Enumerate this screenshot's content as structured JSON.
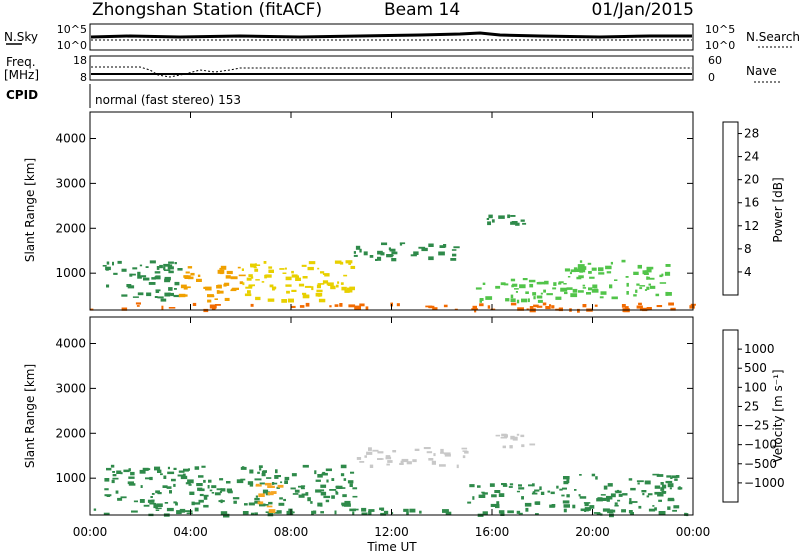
{
  "header": {
    "station": "Zhongshan Station (fitACF)",
    "beam": "Beam 14",
    "date": "01/Jan/2015"
  },
  "strips": {
    "nsky": {
      "label": "N.Sky",
      "ticks": [
        "10^5",
        "10^0"
      ],
      "right_label": "N.Search",
      "right_ticks": [
        "10^5",
        "10^0"
      ]
    },
    "freq": {
      "label_line1": "Freq.",
      "label_line2": "[MHz]",
      "ticks": [
        "18",
        "8"
      ],
      "right_label": "Nave",
      "right_ticks": [
        "60",
        "0"
      ]
    },
    "cpid": {
      "label": "CPID",
      "text": "normal (fast stereo) 153"
    }
  },
  "colors": {
    "power_scale": [
      "#1f3cff",
      "#2354a6",
      "#2f8a4a",
      "#52c44a",
      "#e8d000",
      "#f0a000",
      "#f26a00",
      "#e31a1a"
    ],
    "velocity_scale": [
      "#e31a1a",
      "#f26a00",
      "#f5a623",
      "#c8c8c8",
      "#c8c8c8",
      "#52c44a",
      "#2f8a4a",
      "#2354a6"
    ]
  },
  "chart_data": [
    {
      "type": "heatmap",
      "panel": "power",
      "ylabel": "Slant Range [km]",
      "xlabel": "",
      "yticks": [
        "1000",
        "2000",
        "3000",
        "4000"
      ],
      "ylim": [
        180,
        4590
      ],
      "xlim": [
        0,
        24
      ],
      "colorbar": {
        "label": "Power [dB]",
        "ticks": [
          "4",
          "8",
          "12",
          "16",
          "20",
          "24",
          "28"
        ],
        "range": [
          0,
          30
        ]
      },
      "regions": [
        {
          "x": [
            0.0,
            24.0
          ],
          "y": [
            200,
            350
          ],
          "level": 24
        },
        {
          "x": [
            0.5,
            3.5
          ],
          "y": [
            400,
            1300
          ],
          "level": 8
        },
        {
          "x": [
            3.5,
            6.0
          ],
          "y": [
            400,
            1200
          ],
          "level": 20
        },
        {
          "x": [
            6.0,
            10.5
          ],
          "y": [
            400,
            1300
          ],
          "level": 18
        },
        {
          "x": [
            10.5,
            14.5
          ],
          "y": [
            1300,
            1700
          ],
          "level": 8
        },
        {
          "x": [
            15.0,
            18.5
          ],
          "y": [
            400,
            900
          ],
          "level": 14
        },
        {
          "x": [
            18.5,
            23.0
          ],
          "y": [
            450,
            1300
          ],
          "level": 12
        },
        {
          "x": [
            15.5,
            17.5
          ],
          "y": [
            2100,
            2400
          ],
          "level": 8
        }
      ]
    },
    {
      "type": "heatmap",
      "panel": "velocity",
      "ylabel": "Slant Range [km]",
      "xlabel": "Time UT",
      "xticks": [
        "00:00",
        "04:00",
        "08:00",
        "12:00",
        "16:00",
        "20:00",
        "00:00"
      ],
      "yticks": [
        "1000",
        "2000",
        "3000",
        "4000"
      ],
      "ylim": [
        180,
        4590
      ],
      "xlim": [
        0,
        24
      ],
      "colorbar": {
        "label": "Velocity [m s⁻¹]",
        "ticks": [
          "1000",
          "500",
          "100",
          "25",
          "−25",
          "−100",
          "−500",
          "−1000"
        ]
      },
      "regions": [
        {
          "x": [
            0.0,
            24.0
          ],
          "y": [
            200,
            350
          ],
          "level": 100
        },
        {
          "x": [
            0.5,
            4.0
          ],
          "y": [
            400,
            1300
          ],
          "level": 100
        },
        {
          "x": [
            4.0,
            10.5
          ],
          "y": [
            400,
            1300
          ],
          "level": 100
        },
        {
          "x": [
            6.5,
            7.5
          ],
          "y": [
            300,
            900
          ],
          "level": -100
        },
        {
          "x": [
            10.5,
            15.0
          ],
          "y": [
            1300,
            1700
          ],
          "level": 0
        },
        {
          "x": [
            15.0,
            18.5
          ],
          "y": [
            400,
            900
          ],
          "level": 100
        },
        {
          "x": [
            16.0,
            17.5
          ],
          "y": [
            1700,
            2000
          ],
          "level": 0
        },
        {
          "x": [
            18.5,
            23.5
          ],
          "y": [
            300,
            1100
          ],
          "level": 100
        }
      ]
    }
  ]
}
